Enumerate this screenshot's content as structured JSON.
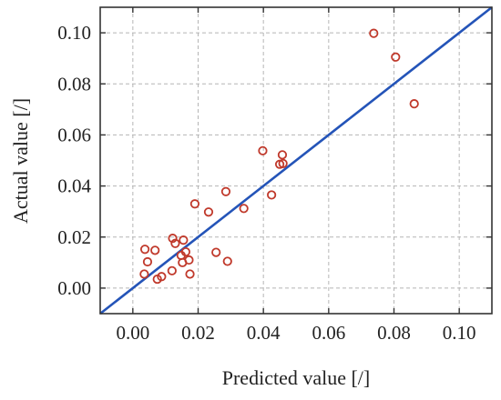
{
  "chart_data": {
    "type": "scatter",
    "xlabel": "Predicted value [/]",
    "ylabel": "Actual value [/]",
    "xlim": [
      -0.01,
      0.11
    ],
    "ylim": [
      -0.01,
      0.11
    ],
    "xticks": [
      "0.00",
      "0.02",
      "0.04",
      "0.06",
      "0.08",
      "0.10"
    ],
    "yticks": [
      "0.00",
      "0.02",
      "0.04",
      "0.06",
      "0.08",
      "0.10"
    ],
    "grid": true,
    "reference_line": {
      "type": "y=x",
      "color": "#2454b8"
    },
    "point_color": "#c0392b",
    "points": [
      {
        "x": 0.0035,
        "y": 0.0055
      },
      {
        "x": 0.0037,
        "y": 0.0152
      },
      {
        "x": 0.0045,
        "y": 0.0103
      },
      {
        "x": 0.0068,
        "y": 0.0148
      },
      {
        "x": 0.0075,
        "y": 0.0035
      },
      {
        "x": 0.0088,
        "y": 0.0045
      },
      {
        "x": 0.012,
        "y": 0.0068
      },
      {
        "x": 0.0122,
        "y": 0.0195
      },
      {
        "x": 0.013,
        "y": 0.0175
      },
      {
        "x": 0.0148,
        "y": 0.0128
      },
      {
        "x": 0.0155,
        "y": 0.0188
      },
      {
        "x": 0.0152,
        "y": 0.01
      },
      {
        "x": 0.0162,
        "y": 0.0142
      },
      {
        "x": 0.0172,
        "y": 0.011
      },
      {
        "x": 0.0175,
        "y": 0.0055
      },
      {
        "x": 0.019,
        "y": 0.033
      },
      {
        "x": 0.0232,
        "y": 0.0298
      },
      {
        "x": 0.0255,
        "y": 0.014
      },
      {
        "x": 0.0285,
        "y": 0.0378
      },
      {
        "x": 0.029,
        "y": 0.0105
      },
      {
        "x": 0.034,
        "y": 0.0312
      },
      {
        "x": 0.0398,
        "y": 0.0538
      },
      {
        "x": 0.0425,
        "y": 0.0365
      },
      {
        "x": 0.045,
        "y": 0.0485
      },
      {
        "x": 0.0458,
        "y": 0.0522
      },
      {
        "x": 0.046,
        "y": 0.0488
      },
      {
        "x": 0.0738,
        "y": 0.0998
      },
      {
        "x": 0.0805,
        "y": 0.0905
      },
      {
        "x": 0.0862,
        "y": 0.0722
      }
    ]
  }
}
